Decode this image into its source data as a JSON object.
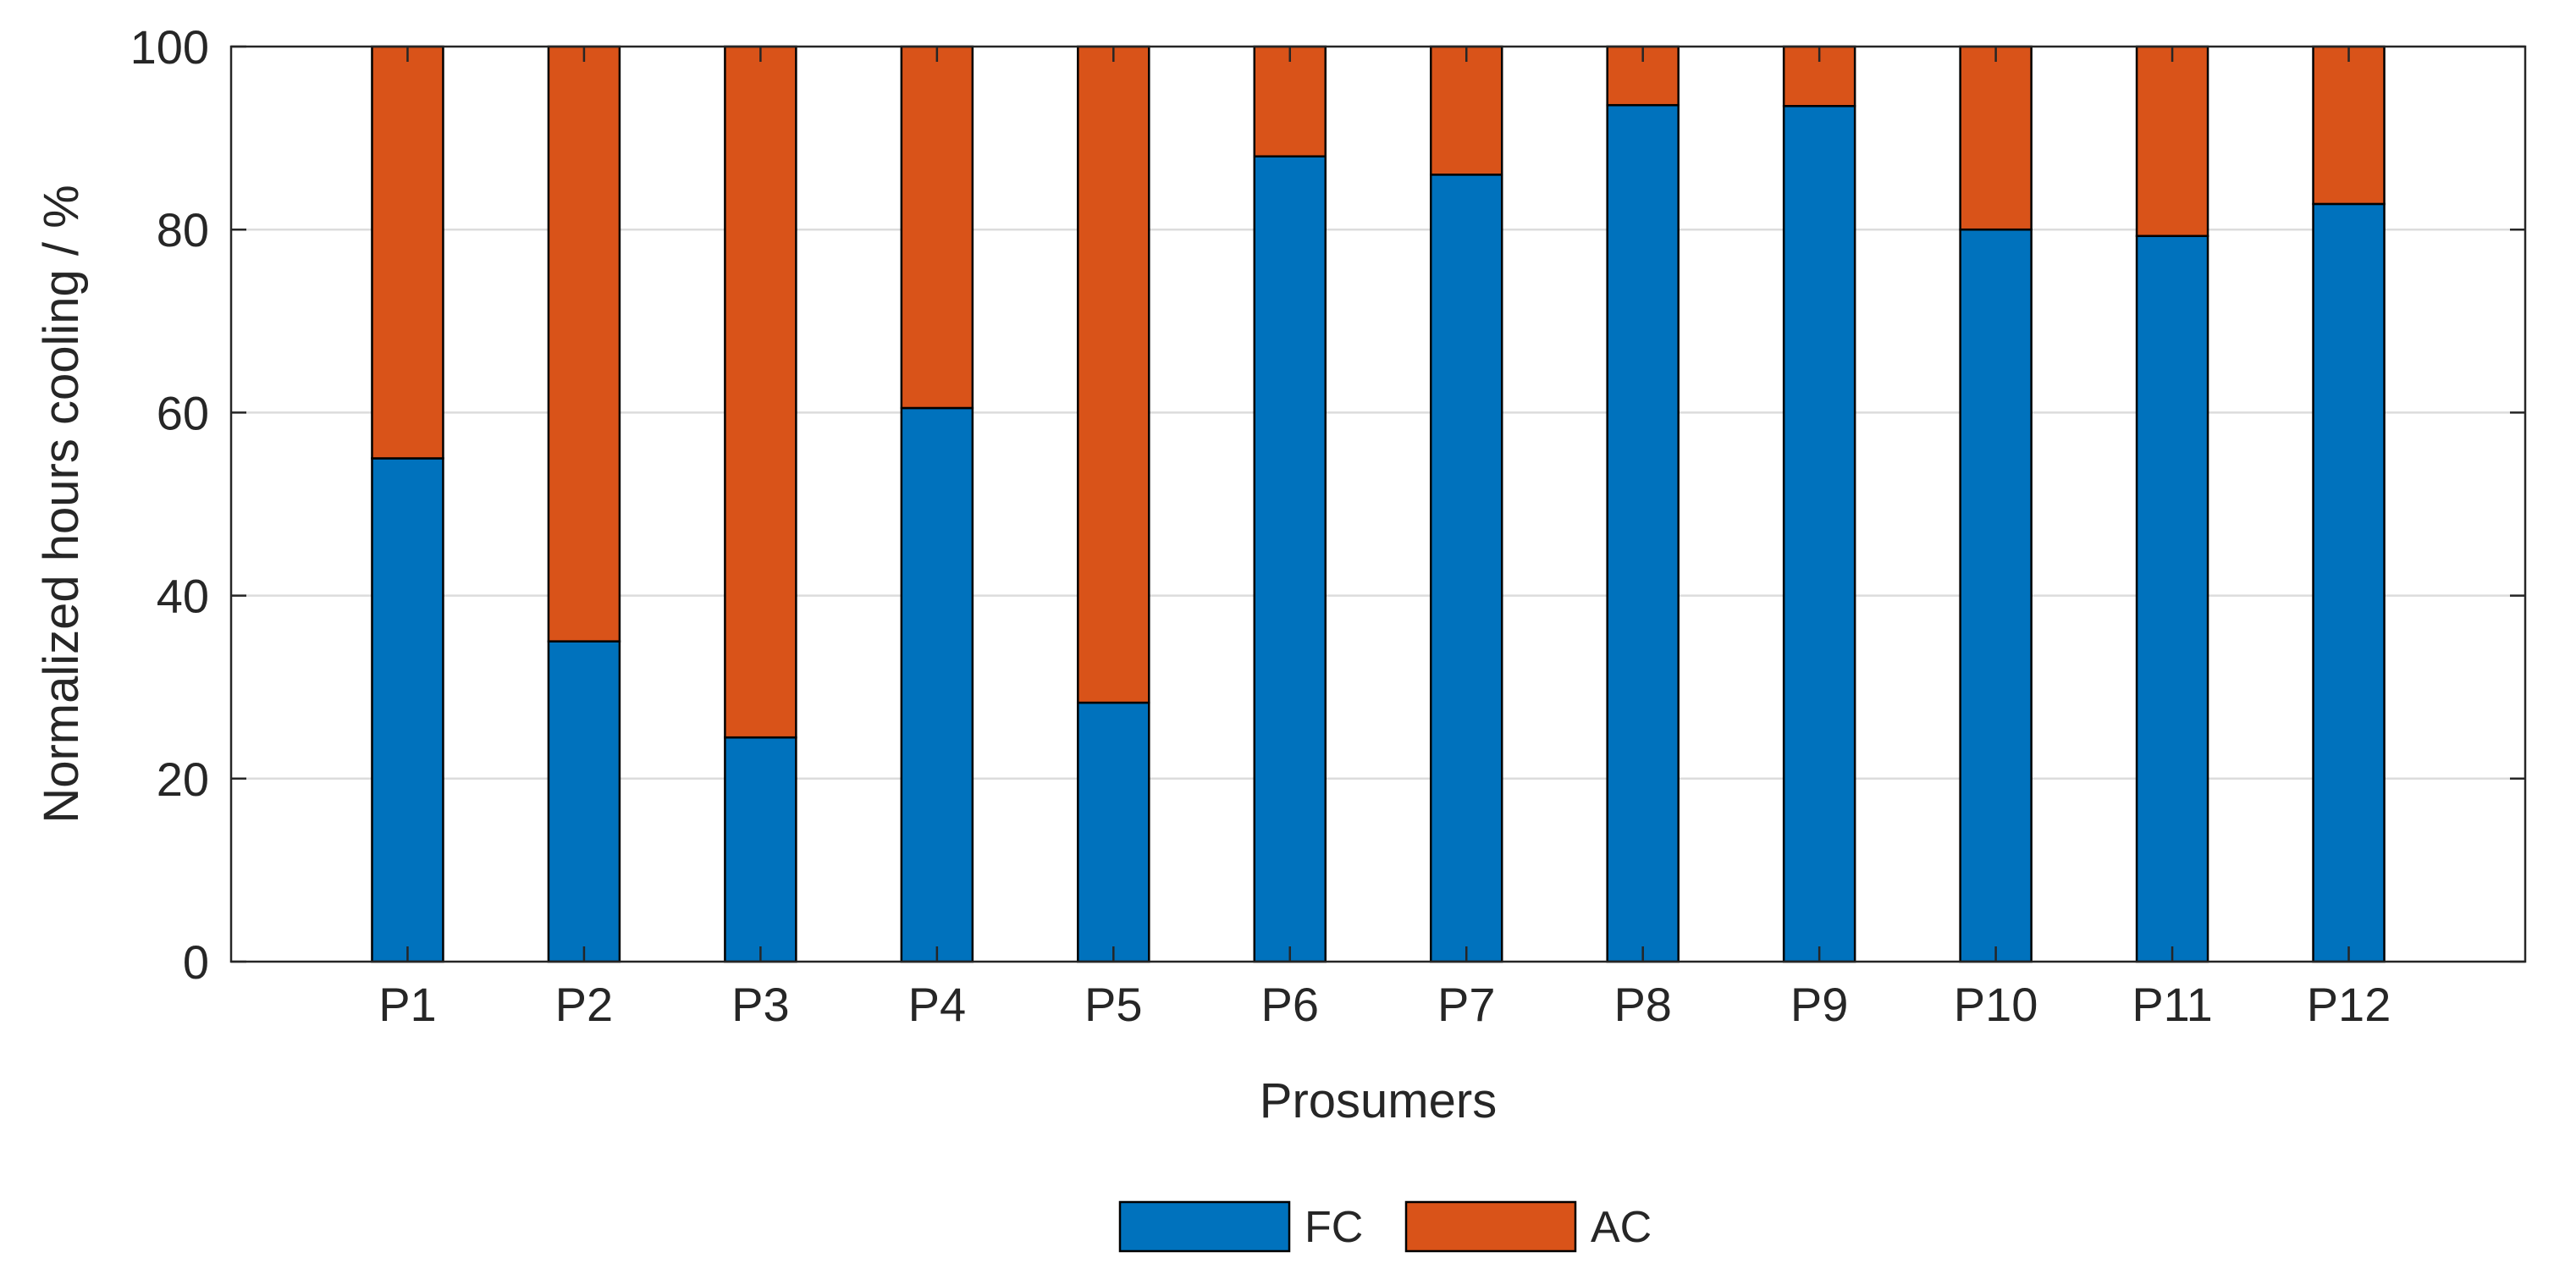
{
  "chart_data": {
    "type": "bar",
    "stacked": true,
    "categories": [
      "P1",
      "P2",
      "P3",
      "P4",
      "P5",
      "P6",
      "P7",
      "P8",
      "P9",
      "P10",
      "P11",
      "P12"
    ],
    "series": [
      {
        "name": "FC",
        "color": "#0072BD",
        "values": [
          55,
          35,
          24.5,
          60.5,
          28.3,
          88,
          86,
          93.6,
          93.5,
          80,
          79.3,
          82.8
        ]
      },
      {
        "name": "AC",
        "color": "#D95319",
        "values": [
          45,
          65,
          75.5,
          39.5,
          71.7,
          12,
          14,
          6.4,
          6.5,
          20,
          20.7,
          17.2
        ]
      }
    ],
    "title": "",
    "xlabel": "Prosumers",
    "ylabel": "Normalized hours cooling / %",
    "ylim": [
      0,
      100
    ],
    "yticks": [
      "0",
      "20",
      "40",
      "60",
      "80",
      "100"
    ],
    "grid": "horizontal",
    "legend": {
      "placement": "bottom-center",
      "orientation": "horizontal",
      "entries": [
        "FC",
        "AC"
      ]
    }
  }
}
